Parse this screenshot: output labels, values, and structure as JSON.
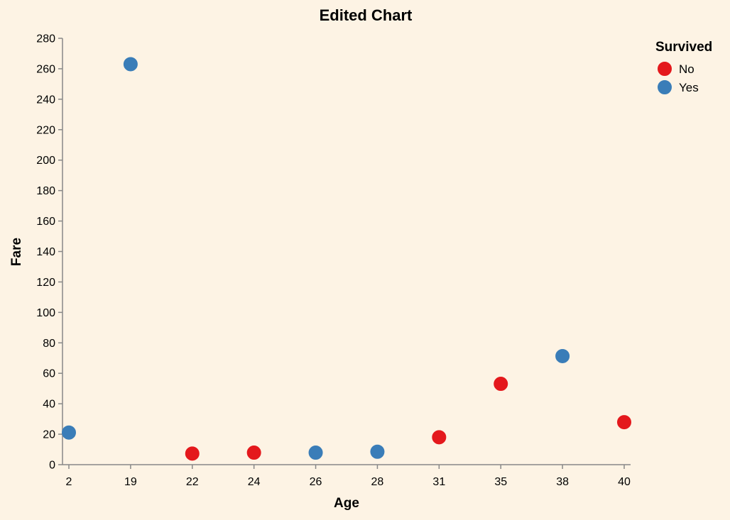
{
  "chart_data": {
    "type": "scatter",
    "title": "Edited Chart",
    "xlabel": "Age",
    "ylabel": "Fare",
    "x_scale": "point",
    "x_categories": [
      "2",
      "19",
      "22",
      "24",
      "26",
      "28",
      "31",
      "35",
      "38",
      "40"
    ],
    "ylim": [
      0,
      280
    ],
    "y_ticks": [
      0,
      20,
      40,
      60,
      80,
      100,
      120,
      140,
      160,
      180,
      200,
      220,
      240,
      260,
      280
    ],
    "grid": false,
    "legend": {
      "title": "Survived",
      "placement": "top-right",
      "entries": [
        {
          "label": "No",
          "color": "#e4181c"
        },
        {
          "label": "Yes",
          "color": "#3a7db8"
        }
      ]
    },
    "series": [
      {
        "name": "No",
        "color": "#e4181c",
        "points": [
          {
            "x": "22",
            "y": 7.3
          },
          {
            "x": "24",
            "y": 7.9
          },
          {
            "x": "31",
            "y": 18.0
          },
          {
            "x": "35",
            "y": 53.1
          },
          {
            "x": "40",
            "y": 27.9
          }
        ]
      },
      {
        "name": "Yes",
        "color": "#3a7db8",
        "points": [
          {
            "x": "2",
            "y": 21.1
          },
          {
            "x": "19",
            "y": 263.0
          },
          {
            "x": "26",
            "y": 7.9
          },
          {
            "x": "28",
            "y": 8.5
          },
          {
            "x": "38",
            "y": 71.3
          }
        ]
      }
    ]
  }
}
